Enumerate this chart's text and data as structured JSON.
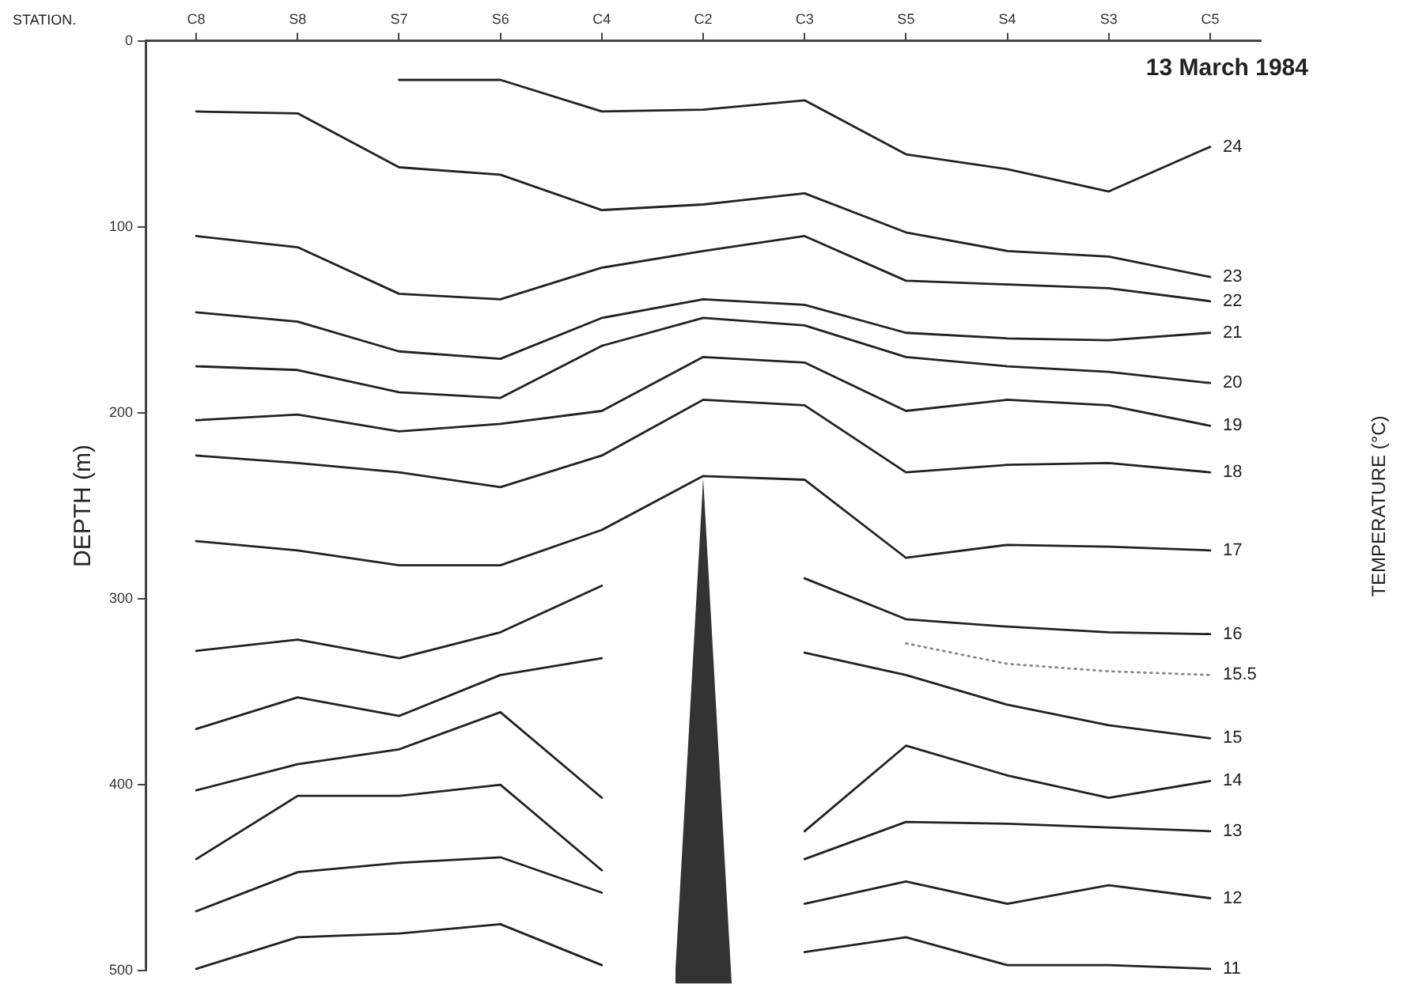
{
  "chart_data": {
    "type": "line",
    "title": "13 March 1984",
    "xlabel": "STATION.",
    "ylabel": "DEPTH (m)",
    "annotations": [
      "TEMPERATURE (°C)"
    ],
    "categories": [
      "C8",
      "S8",
      "S7",
      "S6",
      "C4",
      "C2",
      "C3",
      "S5",
      "S4",
      "S3",
      "C5"
    ],
    "ylim": [
      500,
      0
    ],
    "yticks": [
      0,
      100,
      200,
      300,
      400,
      500
    ],
    "series": [
      {
        "name": "24",
        "color": "#222222",
        "values": [
          null,
          null,
          21,
          21,
          38,
          37,
          32,
          61,
          69,
          81,
          57
        ]
      },
      {
        "name": "23",
        "color": "#222222",
        "values": [
          38,
          39,
          68,
          72,
          91,
          88,
          82,
          103,
          113,
          116,
          127
        ]
      },
      {
        "name": "22",
        "color": "#222222",
        "values": [
          105,
          111,
          136,
          139,
          122,
          113,
          105,
          129,
          131,
          133,
          140
        ]
      },
      {
        "name": "21",
        "color": "#222222",
        "values": [
          146,
          151,
          167,
          171,
          149,
          139,
          142,
          157,
          160,
          161,
          157
        ]
      },
      {
        "name": "20",
        "color": "#222222",
        "values": [
          175,
          177,
          189,
          192,
          164,
          149,
          153,
          170,
          175,
          178,
          184
        ]
      },
      {
        "name": "19",
        "color": "#222222",
        "values": [
          204,
          201,
          210,
          206,
          199,
          170,
          173,
          199,
          193,
          196,
          207
        ]
      },
      {
        "name": "18",
        "color": "#222222",
        "values": [
          223,
          227,
          232,
          240,
          223,
          193,
          196,
          232,
          228,
          227,
          232
        ]
      },
      {
        "name": "17",
        "color": "#222222",
        "values": [
          269,
          274,
          282,
          282,
          263,
          234,
          236,
          278,
          271,
          272,
          274
        ]
      },
      {
        "name": "16",
        "color": "#222222",
        "values": [
          328,
          322,
          332,
          318,
          293,
          null,
          289,
          311,
          315,
          318,
          319
        ]
      },
      {
        "name": "15.5",
        "color": "#888888",
        "line_style": "dotted",
        "values": [
          null,
          null,
          null,
          null,
          null,
          null,
          null,
          324,
          335,
          339,
          341
        ]
      },
      {
        "name": "15",
        "color": "#222222",
        "values": [
          370,
          353,
          363,
          341,
          332,
          null,
          329,
          341,
          357,
          368,
          375
        ]
      },
      {
        "name": "14",
        "color": "#222222",
        "values": [
          403,
          389,
          381,
          361,
          407,
          null,
          425,
          379,
          395,
          407,
          398
        ]
      },
      {
        "name": "13",
        "color": "#222222",
        "values": [
          440,
          406,
          406,
          400,
          446,
          null,
          440,
          420,
          421,
          423,
          425
        ]
      },
      {
        "name": "12",
        "color": "#222222",
        "values": [
          468,
          447,
          442,
          439,
          458,
          null,
          464,
          452,
          464,
          454,
          461
        ]
      },
      {
        "name": "11",
        "color": "#222222",
        "values": [
          499,
          482,
          480,
          475,
          497,
          null,
          490,
          482,
          497,
          497,
          499
        ]
      }
    ]
  }
}
